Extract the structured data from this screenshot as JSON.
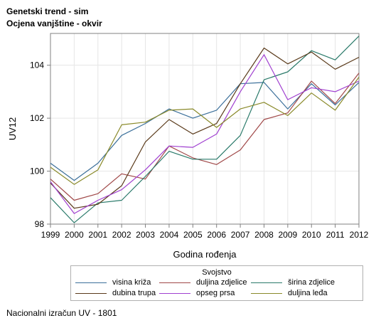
{
  "header": {
    "title": "Genetski trend - sim",
    "subtitle": "Ocjena vanjštine - okvir"
  },
  "footnote": "Nacionalni izračun UV - 1801",
  "chart_data": {
    "type": "line",
    "xlabel": "Godina rođenja",
    "ylabel": "UV12",
    "x": [
      1999,
      2000,
      2001,
      2002,
      2003,
      2004,
      2005,
      2006,
      2007,
      2008,
      2009,
      2010,
      2011,
      2012
    ],
    "xlim": [
      1999,
      2012
    ],
    "ylim": [
      98,
      105.2
    ],
    "yticks": [
      98,
      100,
      102,
      104
    ],
    "grid": true,
    "legend_title": "Svojstvo",
    "legend_position": "bottom",
    "series": [
      {
        "name": "visina križa",
        "color": "#3b6f9a",
        "values": [
          100.3,
          99.65,
          100.3,
          101.35,
          101.8,
          102.35,
          102.0,
          102.3,
          103.3,
          103.35,
          102.35,
          103.3,
          102.5,
          103.35
        ]
      },
      {
        "name": "duljina zdjelice",
        "color": "#a04848",
        "values": [
          99.7,
          98.9,
          99.15,
          99.9,
          99.7,
          100.95,
          100.5,
          100.25,
          100.8,
          101.95,
          102.2,
          103.4,
          102.55,
          103.7
        ]
      },
      {
        "name": "širina zdjelice",
        "color": "#2a7a6a",
        "values": [
          99.0,
          98.05,
          98.8,
          98.9,
          99.8,
          100.75,
          100.45,
          100.45,
          101.35,
          103.45,
          103.75,
          104.55,
          104.2,
          105.1
        ]
      },
      {
        "name": "dubina trupa",
        "color": "#5a3a1a",
        "values": [
          99.55,
          98.6,
          98.75,
          99.45,
          101.1,
          101.95,
          101.4,
          101.8,
          103.3,
          104.65,
          104.05,
          104.5,
          103.85,
          104.3
        ]
      },
      {
        "name": "opseg prsa",
        "color": "#a040d0",
        "values": [
          99.6,
          98.4,
          98.9,
          99.3,
          100.05,
          100.95,
          100.9,
          101.4,
          103.0,
          104.4,
          102.7,
          103.15,
          103.0,
          103.4
        ]
      },
      {
        "name": "duljina leđa",
        "color": "#8a8a2a",
        "values": [
          100.15,
          99.5,
          100.05,
          101.75,
          101.85,
          102.3,
          102.35,
          101.65,
          102.35,
          102.6,
          102.1,
          102.95,
          102.3,
          103.55
        ]
      }
    ]
  }
}
